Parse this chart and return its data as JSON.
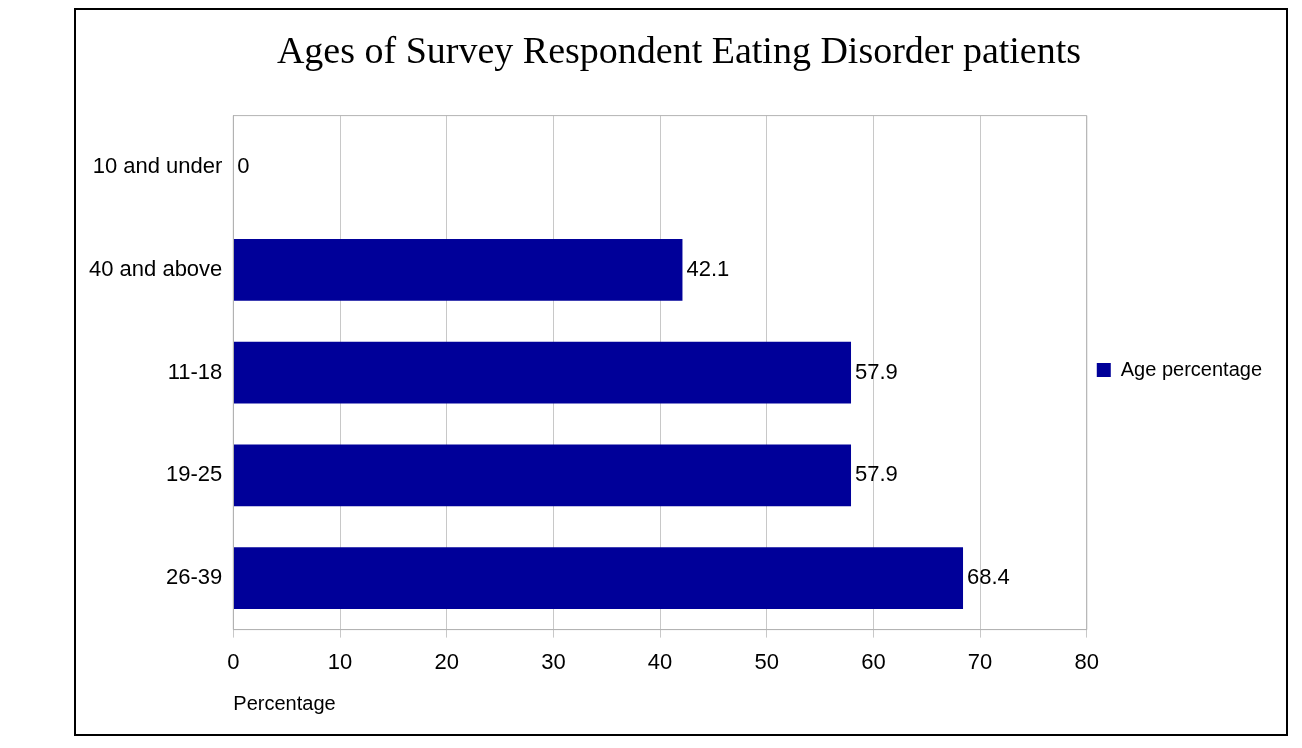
{
  "chart_data": {
    "type": "bar",
    "orientation": "horizontal",
    "title": "Ages of Survey Respondent Eating Disorder patients",
    "xlabel": "Percentage",
    "categories": [
      "10 and under",
      "40 and above",
      "11-18",
      "19-25",
      "26-39"
    ],
    "series": [
      {
        "name": "Age percentage",
        "color": "#000099",
        "values": [
          0,
          42.1,
          57.9,
          57.9,
          68.4
        ]
      }
    ],
    "xlim": [
      0,
      80
    ],
    "xticks": [
      0,
      10,
      20,
      30,
      40,
      50,
      60,
      70,
      80
    ],
    "grid": "x",
    "legend": "right",
    "data_labels": true
  }
}
